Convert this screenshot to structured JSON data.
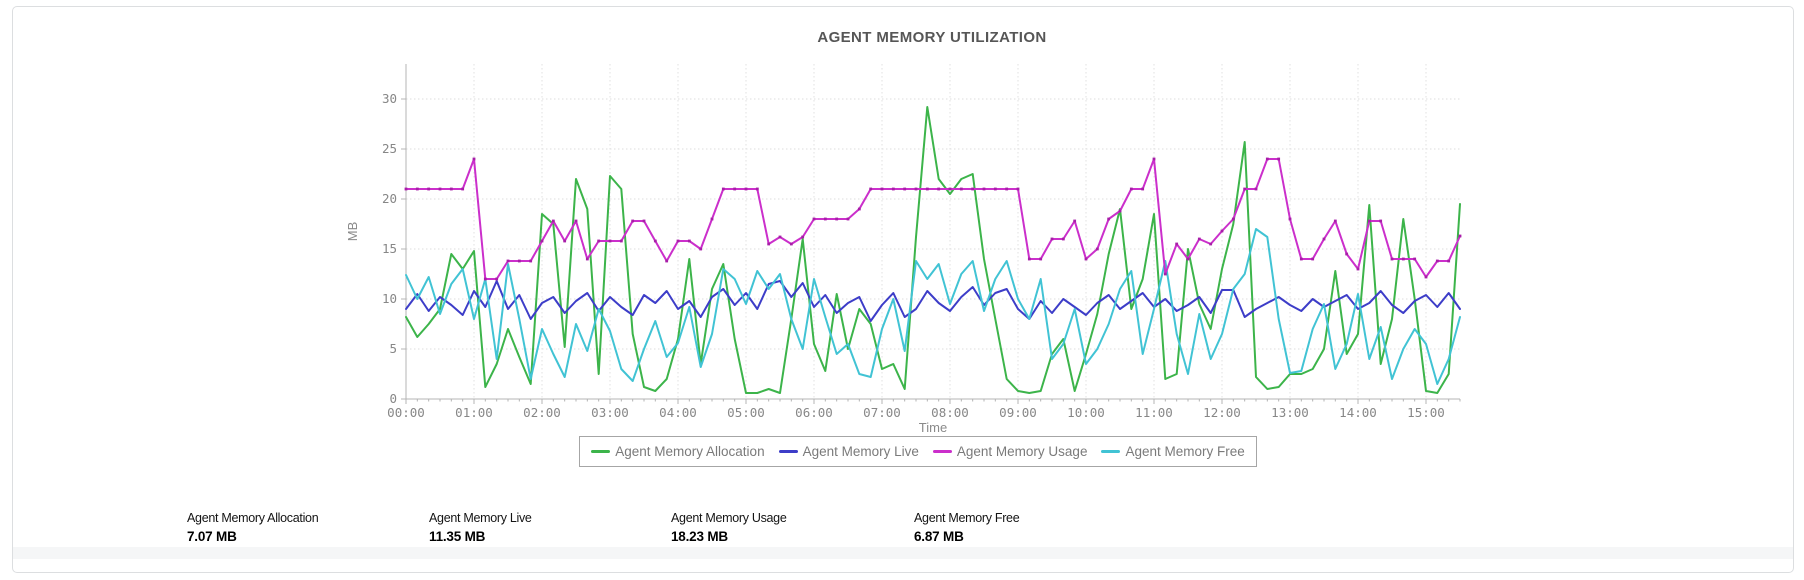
{
  "chart_data": {
    "type": "line",
    "title": "AGENT MEMORY UTILIZATION",
    "xlabel": "Time",
    "ylabel": "MB",
    "ylim": [
      0,
      33.5
    ],
    "yticks": [
      0,
      5,
      10,
      15,
      20,
      25,
      30
    ],
    "xtick_labels": [
      "00:00",
      "01:00",
      "02:00",
      "03:00",
      "04:00",
      "05:00",
      "06:00",
      "07:00",
      "08:00",
      "09:00",
      "10:00",
      "11:00",
      "12:00",
      "13:00",
      "14:00",
      "15:00"
    ],
    "grid": true,
    "legend_position": "bottom",
    "x_start_min": 0,
    "x_step_min": 10,
    "series": [
      {
        "name": "Agent Memory Allocation",
        "color": "#3cb44a",
        "values": [
          8.2,
          6.2,
          7.5,
          9.0,
          14.5,
          13.0,
          14.8,
          1.2,
          3.5,
          7.0,
          4.2,
          1.5,
          18.5,
          17.5,
          5.2,
          22.0,
          19.0,
          2.5,
          22.3,
          21.0,
          6.5,
          1.2,
          0.8,
          2.0,
          6.0,
          14.0,
          3.5,
          11.0,
          13.5,
          6.0,
          0.6,
          0.6,
          1.0,
          0.6,
          8.0,
          16.0,
          5.5,
          2.8,
          10.5,
          5.0,
          9.0,
          7.5,
          3.0,
          3.5,
          1.0,
          16.2,
          29.2,
          22.0,
          20.5,
          22.0,
          22.5,
          14.0,
          8.0,
          2.0,
          0.8,
          0.6,
          0.8,
          4.5,
          6.0,
          0.8,
          4.5,
          8.5,
          14.5,
          19.0,
          9.0,
          12.0,
          18.5,
          2.0,
          2.5,
          15.0,
          9.5,
          7.0,
          13.0,
          17.5,
          25.7,
          2.2,
          1.0,
          1.2,
          2.5,
          2.5,
          3.0,
          5.0,
          12.8,
          4.5,
          6.5,
          19.4,
          3.5,
          8.0,
          18.0,
          10.0,
          0.8,
          0.6,
          2.5,
          19.5
        ]
      },
      {
        "name": "Agent Memory Live",
        "color": "#3d3dc8",
        "values": [
          9.0,
          10.5,
          8.8,
          10.2,
          9.4,
          8.4,
          10.8,
          9.2,
          11.8,
          9.0,
          10.4,
          8.0,
          9.6,
          10.2,
          8.6,
          9.8,
          10.6,
          8.8,
          10.2,
          9.2,
          8.4,
          10.4,
          9.6,
          10.8,
          9.0,
          9.8,
          8.2,
          10.2,
          11.0,
          9.4,
          10.6,
          9.0,
          11.5,
          11.8,
          10.2,
          11.6,
          9.2,
          10.4,
          8.6,
          9.6,
          10.2,
          7.8,
          9.4,
          10.6,
          8.2,
          9.0,
          10.8,
          9.6,
          8.8,
          10.2,
          11.2,
          9.4,
          10.6,
          11.0,
          9.0,
          8.0,
          9.8,
          8.6,
          10.0,
          9.2,
          8.4,
          9.6,
          10.4,
          9.0,
          9.8,
          10.6,
          9.2,
          10.0,
          8.8,
          9.4,
          10.2,
          8.6,
          10.9,
          10.9,
          8.2,
          9.0,
          9.6,
          10.2,
          9.4,
          8.8,
          10.0,
          9.2,
          9.8,
          10.4,
          9.0,
          9.6,
          10.8,
          9.4,
          8.6,
          9.8,
          10.4,
          9.2,
          10.6,
          9.0
        ]
      },
      {
        "name": "Agent Memory Usage",
        "color": "#cb2fcb",
        "markers": true,
        "values": [
          21,
          21,
          21,
          21,
          21,
          21,
          24,
          12,
          12,
          13.8,
          13.8,
          13.8,
          15.8,
          17.8,
          15.8,
          17.8,
          14,
          15.8,
          15.8,
          15.8,
          17.8,
          17.8,
          15.8,
          13.8,
          15.8,
          15.8,
          15,
          18,
          21,
          21,
          21,
          21,
          15.5,
          16.2,
          15.5,
          16.2,
          18,
          18,
          18,
          18,
          19,
          21,
          21,
          21,
          21,
          21,
          21,
          21,
          21,
          21,
          21,
          21,
          21,
          21,
          21,
          14,
          14,
          16,
          16,
          17.8,
          14,
          15,
          18,
          18.8,
          21,
          21,
          24,
          12.5,
          15.5,
          14,
          16,
          15.5,
          16.8,
          18,
          21,
          21,
          24,
          24,
          18,
          14,
          14,
          16,
          17.8,
          14.5,
          13,
          17.8,
          17.8,
          14,
          14,
          14,
          12.2,
          13.8,
          13.8,
          16.3
        ]
      },
      {
        "name": "Agent Memory Free",
        "color": "#41c3d4",
        "values": [
          12.4,
          10.0,
          12.2,
          8.5,
          11.5,
          13.0,
          8.0,
          12.0,
          4.0,
          13.5,
          8.0,
          2.0,
          7.0,
          4.5,
          2.2,
          7.5,
          4.8,
          9.0,
          6.8,
          3.0,
          1.8,
          5.0,
          7.8,
          4.2,
          5.6,
          9.2,
          3.2,
          6.5,
          13.0,
          12.0,
          9.5,
          12.8,
          11.0,
          12.5,
          8.0,
          5.0,
          12.0,
          8.2,
          4.5,
          5.5,
          2.5,
          2.2,
          7.0,
          10.0,
          4.8,
          13.8,
          12.0,
          13.5,
          9.5,
          12.5,
          13.8,
          8.8,
          12.0,
          13.8,
          10.0,
          8.0,
          12.0,
          4.0,
          5.5,
          9.0,
          3.5,
          5.0,
          7.5,
          11.0,
          12.8,
          4.5,
          9.0,
          13.8,
          6.5,
          2.5,
          8.5,
          4.0,
          6.5,
          11.0,
          12.5,
          17.0,
          16.2,
          8.0,
          2.6,
          2.8,
          7.0,
          9.5,
          3.0,
          5.5,
          10.5,
          4.0,
          7.2,
          2.0,
          5.0,
          7.0,
          5.5,
          1.5,
          4.0,
          8.2
        ]
      }
    ]
  },
  "stats": [
    {
      "label": "Agent Memory Allocation",
      "value": "7.07 MB"
    },
    {
      "label": "Agent Memory Live",
      "value": "11.35 MB"
    },
    {
      "label": "Agent Memory Usage",
      "value": "18.23 MB"
    },
    {
      "label": "Agent Memory Free",
      "value": "6.87 MB"
    }
  ]
}
